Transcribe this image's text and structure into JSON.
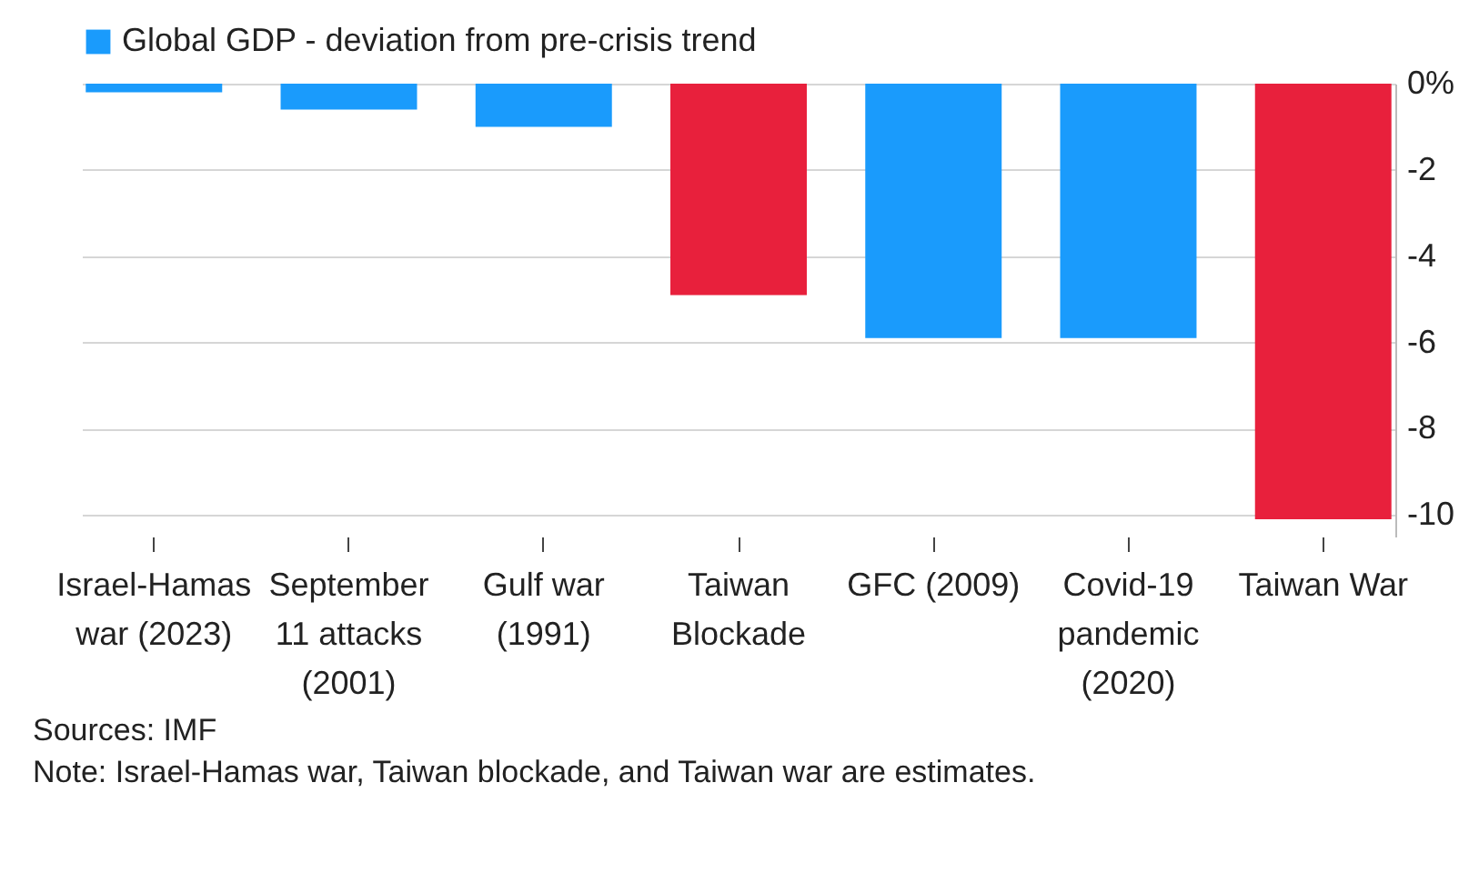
{
  "chart_data": {
    "type": "bar",
    "categories": [
      "Israel-Hamas war (2023)",
      "September 11 attacks (2001)",
      "Gulf war (1991)",
      "Taiwan Blockade",
      "GFC (2009)",
      "Covid-19 pandemic (2020)",
      "Taiwan War"
    ],
    "series": [
      {
        "name": "Global GDP - deviation from pre-crisis trend",
        "color": "#1a9bfc",
        "colors": [
          "#1a9bfc",
          "#1a9bfc",
          "#1a9bfc",
          "#e8203c",
          "#1a9bfc",
          "#1a9bfc",
          "#e8203c"
        ],
        "values": [
          -0.2,
          -0.6,
          -1.0,
          -4.9,
          -5.9,
          -5.9,
          -10.1
        ]
      }
    ],
    "ylim": [
      -10.5,
      0
    ],
    "yticks": [
      {
        "value": 0,
        "label": "0%"
      },
      -2,
      -4,
      -6,
      -8,
      -10
    ],
    "grid": "y",
    "legend": "top left",
    "annotations": [
      "Sources: IMF",
      "Note: Israel-Hamas war, Taiwan blockade, and Taiwan war are estimates."
    ]
  }
}
